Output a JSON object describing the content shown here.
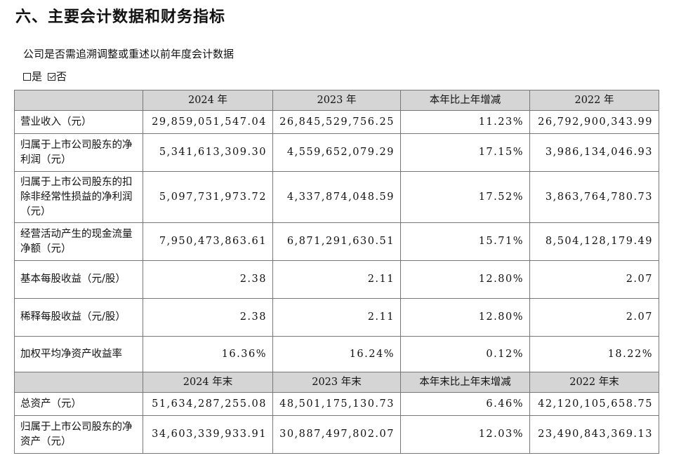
{
  "heading": "六、主要会计数据和财务指标",
  "question": "公司是否需追溯调整或重述以前年度会计数据",
  "options": {
    "yes_label": "是",
    "no_label": "否",
    "selected": "否"
  },
  "headers1": [
    "",
    "2024 年",
    "2023 年",
    "本年比上年增减",
    "2022 年"
  ],
  "rows1": [
    [
      "营业收入（元）",
      "29,859,051,547.04",
      "26,845,529,756.25",
      "11.23%",
      "26,792,900,343.99"
    ],
    [
      "归属于上市公司股东的净利润（元）",
      "5,341,613,309.30",
      "4,559,652,079.29",
      "17.15%",
      "3,986,134,046.93"
    ],
    [
      "归属于上市公司股东的扣除非经常性损益的净利润（元）",
      "5,097,731,973.72",
      "4,337,874,048.59",
      "17.52%",
      "3,863,764,780.73"
    ],
    [
      "经营活动产生的现金流量净额（元）",
      "7,950,473,863.61",
      "6,871,291,630.51",
      "15.71%",
      "8,504,128,179.49"
    ],
    [
      "基本每股收益（元/股）",
      "2.38",
      "2.11",
      "12.80%",
      "2.07"
    ],
    [
      "稀释每股收益（元/股）",
      "2.38",
      "2.11",
      "12.80%",
      "2.07"
    ],
    [
      "加权平均净资产收益率",
      "16.36%",
      "16.24%",
      "0.12%",
      "18.22%"
    ]
  ],
  "headers2": [
    "",
    "2024 年末",
    "2023 年末",
    "本年末比上年末增减",
    "2022 年末"
  ],
  "rows2": [
    [
      "总资产（元）",
      "51,634,287,255.08",
      "48,501,175,130.73",
      "6.46%",
      "42,120,105,658.75"
    ],
    [
      "归属于上市公司股东的净资产（元）",
      "34,603,339,933.91",
      "30,887,497,802.07",
      "12.03%",
      "23,490,843,369.13"
    ]
  ]
}
